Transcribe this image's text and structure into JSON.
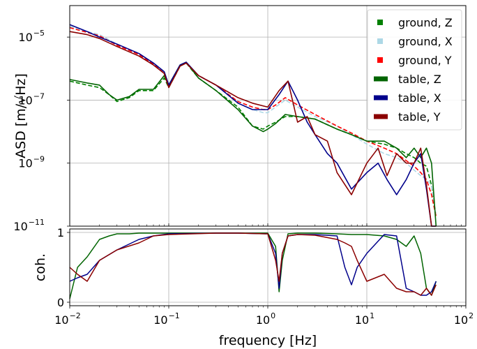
{
  "chart_data": [
    {
      "type": "line",
      "panel": "top",
      "xscale": "log",
      "yscale": "log",
      "xlim": [
        0.01,
        100
      ],
      "ylim": [
        1e-11,
        0.0001
      ],
      "ylabel": "ASD [m/√Hz]",
      "grid": true,
      "legend_position": "top-right",
      "yticks": [
        {
          "value": 1e-11,
          "base": "10",
          "exp": "−11"
        },
        {
          "value": 1e-09,
          "base": "10",
          "exp": "−9"
        },
        {
          "value": 1e-07,
          "base": "10",
          "exp": "−7"
        },
        {
          "value": 1e-05,
          "base": "10",
          "exp": "−5"
        }
      ],
      "series": [
        {
          "name": "ground, Z",
          "color": "#008000",
          "style": "dashed",
          "x": [
            0.01,
            0.015,
            0.02,
            0.025,
            0.03,
            0.04,
            0.05,
            0.07,
            0.09,
            0.1,
            0.13,
            0.15,
            0.2,
            0.3,
            0.5,
            0.7,
            0.9,
            1.0,
            1.2,
            1.5,
            2,
            3,
            5,
            7,
            10,
            15,
            20,
            25,
            30,
            35,
            40,
            45,
            50
          ],
          "y": [
            4e-07,
            3e-07,
            2.5e-07,
            1.5e-07,
            9e-08,
            1.2e-07,
            2e-07,
            2e-07,
            5e-07,
            2.5e-07,
            1.2e-06,
            1.5e-06,
            5e-07,
            2e-07,
            6e-08,
            1.5e-08,
            1.2e-08,
            1.5e-08,
            2e-08,
            3e-08,
            3e-08,
            2.5e-08,
            1.2e-08,
            8e-09,
            5e-09,
            4e-09,
            3e-09,
            2e-09,
            1.5e-09,
            1e-09,
            8e-10,
            2e-10,
            2e-11
          ]
        },
        {
          "name": "ground, X",
          "color": "#add8e6",
          "style": "dashed",
          "x": [
            0.01,
            0.015,
            0.02,
            0.03,
            0.05,
            0.07,
            0.09,
            0.1,
            0.13,
            0.15,
            0.2,
            0.3,
            0.5,
            0.7,
            0.9,
            1.0,
            1.2,
            1.5,
            2,
            3,
            5,
            7,
            10,
            15,
            20,
            25,
            30,
            35,
            40,
            45,
            50
          ],
          "y": [
            2.2e-05,
            1.5e-05,
            1.2e-05,
            6e-06,
            3e-06,
            1.5e-06,
            8e-07,
            3e-07,
            1.3e-06,
            1.5e-06,
            6e-07,
            3e-07,
            8e-08,
            5e-08,
            4e-08,
            4e-08,
            6e-08,
            1e-07,
            6e-08,
            3e-08,
            1.5e-08,
            8e-09,
            4e-09,
            2e-09,
            1.5e-09,
            1e-09,
            6e-10,
            4e-10,
            3e-10,
            2e-10,
            2e-11
          ]
        },
        {
          "name": "ground, Y",
          "color": "#ff0000",
          "style": "dashed",
          "x": [
            0.01,
            0.015,
            0.02,
            0.03,
            0.05,
            0.07,
            0.09,
            0.1,
            0.13,
            0.15,
            0.2,
            0.3,
            0.5,
            0.7,
            0.9,
            1.0,
            1.2,
            1.5,
            2,
            3,
            5,
            7,
            10,
            15,
            20,
            25,
            30,
            35,
            40,
            45,
            50
          ],
          "y": [
            2e-05,
            1.4e-05,
            1.1e-05,
            5.5e-06,
            2.8e-06,
            1.4e-06,
            7e-07,
            2.8e-07,
            1.2e-06,
            1.5e-06,
            6e-07,
            3e-07,
            9e-08,
            6e-08,
            5e-08,
            5e-08,
            7e-08,
            1.2e-07,
            7e-08,
            3.5e-08,
            1.5e-08,
            9e-09,
            5e-09,
            3e-09,
            2e-09,
            1.2e-09,
            8e-10,
            5e-10,
            3e-10,
            1e-10,
            2e-11
          ]
        },
        {
          "name": "table, Z",
          "color": "#006400",
          "style": "solid",
          "x": [
            0.01,
            0.015,
            0.02,
            0.025,
            0.03,
            0.04,
            0.05,
            0.07,
            0.09,
            0.1,
            0.13,
            0.15,
            0.2,
            0.3,
            0.5,
            0.7,
            0.9,
            1.0,
            1.2,
            1.5,
            2,
            3,
            5,
            7,
            10,
            15,
            20,
            25,
            30,
            35,
            40,
            45,
            50
          ],
          "y": [
            4.5e-07,
            3.5e-07,
            3e-07,
            1.5e-07,
            1e-07,
            1.3e-07,
            2.2e-07,
            2.2e-07,
            6e-07,
            3e-07,
            1.3e-06,
            1.6e-06,
            5e-07,
            2e-07,
            5e-08,
            1.5e-08,
            1e-08,
            1.2e-08,
            1.8e-08,
            3.5e-08,
            3e-08,
            2.5e-08,
            1.2e-08,
            8e-09,
            5e-09,
            5e-09,
            3e-09,
            1.5e-09,
            3e-09,
            1.5e-09,
            3e-09,
            1e-09,
            1e-11
          ]
        },
        {
          "name": "table, X",
          "color": "#00008b",
          "style": "solid",
          "x": [
            0.01,
            0.015,
            0.02,
            0.03,
            0.05,
            0.07,
            0.09,
            0.1,
            0.13,
            0.15,
            0.2,
            0.3,
            0.5,
            0.7,
            1.0,
            1.3,
            1.6,
            2,
            2.5,
            3,
            4,
            5,
            7,
            10,
            13,
            16,
            20,
            25,
            30,
            35,
            40,
            45,
            50
          ],
          "y": [
            2.5e-05,
            1.5e-05,
            1e-05,
            6e-06,
            3e-06,
            1.5e-06,
            8e-07,
            3e-07,
            1.3e-06,
            1.6e-06,
            6e-07,
            3e-07,
            8e-08,
            5e-08,
            5e-08,
            1.5e-07,
            4e-07,
            1e-07,
            2e-08,
            8e-09,
            2e-09,
            1e-09,
            1.5e-10,
            5e-10,
            1e-09,
            3e-10,
            1e-10,
            3e-10,
            1e-09,
            2e-09,
            1.5e-10,
            1e-11,
            1e-11
          ]
        },
        {
          "name": "table, Y",
          "color": "#8b0000",
          "style": "solid",
          "x": [
            0.01,
            0.015,
            0.02,
            0.03,
            0.05,
            0.07,
            0.09,
            0.1,
            0.13,
            0.15,
            0.2,
            0.3,
            0.5,
            0.7,
            1.0,
            1.3,
            1.6,
            2,
            2.5,
            3,
            4,
            5,
            7,
            10,
            13,
            16,
            20,
            25,
            30,
            35,
            40,
            45,
            50
          ],
          "y": [
            1.5e-05,
            1.2e-05,
            9e-06,
            5e-06,
            2.5e-06,
            1.3e-06,
            7e-07,
            2.5e-07,
            1.2e-06,
            1.5e-06,
            6e-07,
            3e-07,
            1.2e-07,
            8e-08,
            6e-08,
            2e-07,
            4e-07,
            2e-08,
            3e-08,
            8e-09,
            5e-09,
            5e-10,
            1e-10,
            1e-09,
            3e-09,
            4e-10,
            2e-09,
            1e-09,
            1e-09,
            3e-09,
            2e-10,
            1e-11,
            1e-11
          ]
        }
      ]
    },
    {
      "type": "line",
      "panel": "bottom",
      "xscale": "log",
      "xlim": [
        0.01,
        100
      ],
      "ylim": [
        -0.05,
        1.05
      ],
      "xlabel": "frequency [Hz]",
      "ylabel": "coh.",
      "grid": true,
      "xticks": [
        {
          "value": 0.01,
          "base": "10",
          "exp": "−2"
        },
        {
          "value": 0.1,
          "base": "10",
          "exp": "−1"
        },
        {
          "value": 1,
          "base": "10",
          "exp": "0"
        },
        {
          "value": 10,
          "base": "10",
          "exp": "1"
        },
        {
          "value": 100,
          "base": "10",
          "exp": "2"
        }
      ],
      "yticks": [
        {
          "value": 0,
          "label": "0"
        },
        {
          "value": 1,
          "label": "1"
        }
      ],
      "series": [
        {
          "name": "table, Z",
          "color": "#006400",
          "x": [
            0.01,
            0.012,
            0.015,
            0.02,
            0.025,
            0.03,
            0.04,
            0.05,
            0.07,
            0.1,
            0.3,
            0.5,
            1.0,
            1.2,
            1.3,
            1.4,
            1.6,
            2,
            3,
            5,
            7,
            10,
            15,
            20,
            25,
            30,
            35,
            40,
            45,
            50
          ],
          "y": [
            0.05,
            0.5,
            0.65,
            0.9,
            0.95,
            0.98,
            0.98,
            0.99,
            0.99,
            0.99,
            0.99,
            0.99,
            0.99,
            0.8,
            0.15,
            0.6,
            0.98,
            0.99,
            0.99,
            0.98,
            0.97,
            0.97,
            0.95,
            0.9,
            0.8,
            0.95,
            0.7,
            0.2,
            0.1,
            0.3
          ]
        },
        {
          "name": "table, X",
          "color": "#00008b",
          "x": [
            0.01,
            0.012,
            0.015,
            0.02,
            0.03,
            0.05,
            0.07,
            0.1,
            0.3,
            0.5,
            1.0,
            1.2,
            1.3,
            1.4,
            1.6,
            2,
            3,
            5,
            6,
            7,
            8,
            10,
            15,
            20,
            25,
            30,
            35,
            40,
            45,
            50
          ],
          "y": [
            0.3,
            0.35,
            0.4,
            0.6,
            0.75,
            0.9,
            0.95,
            0.98,
            0.99,
            0.99,
            0.98,
            0.7,
            0.2,
            0.7,
            0.95,
            0.97,
            0.97,
            0.95,
            0.5,
            0.25,
            0.5,
            0.7,
            0.97,
            0.95,
            0.2,
            0.15,
            0.1,
            0.1,
            0.15,
            0.3
          ]
        },
        {
          "name": "table, Y",
          "color": "#8b0000",
          "x": [
            0.01,
            0.012,
            0.015,
            0.02,
            0.03,
            0.05,
            0.07,
            0.1,
            0.3,
            0.5,
            1.0,
            1.2,
            1.3,
            1.4,
            1.6,
            2,
            3,
            5,
            6,
            7,
            8,
            10,
            15,
            20,
            25,
            30,
            35,
            40,
            45,
            50
          ],
          "y": [
            0.5,
            0.4,
            0.3,
            0.6,
            0.75,
            0.85,
            0.95,
            0.97,
            0.99,
            0.99,
            0.98,
            0.6,
            0.3,
            0.7,
            0.95,
            0.97,
            0.96,
            0.9,
            0.85,
            0.8,
            0.6,
            0.3,
            0.4,
            0.2,
            0.15,
            0.15,
            0.1,
            0.2,
            0.1,
            0.25
          ]
        }
      ]
    }
  ]
}
